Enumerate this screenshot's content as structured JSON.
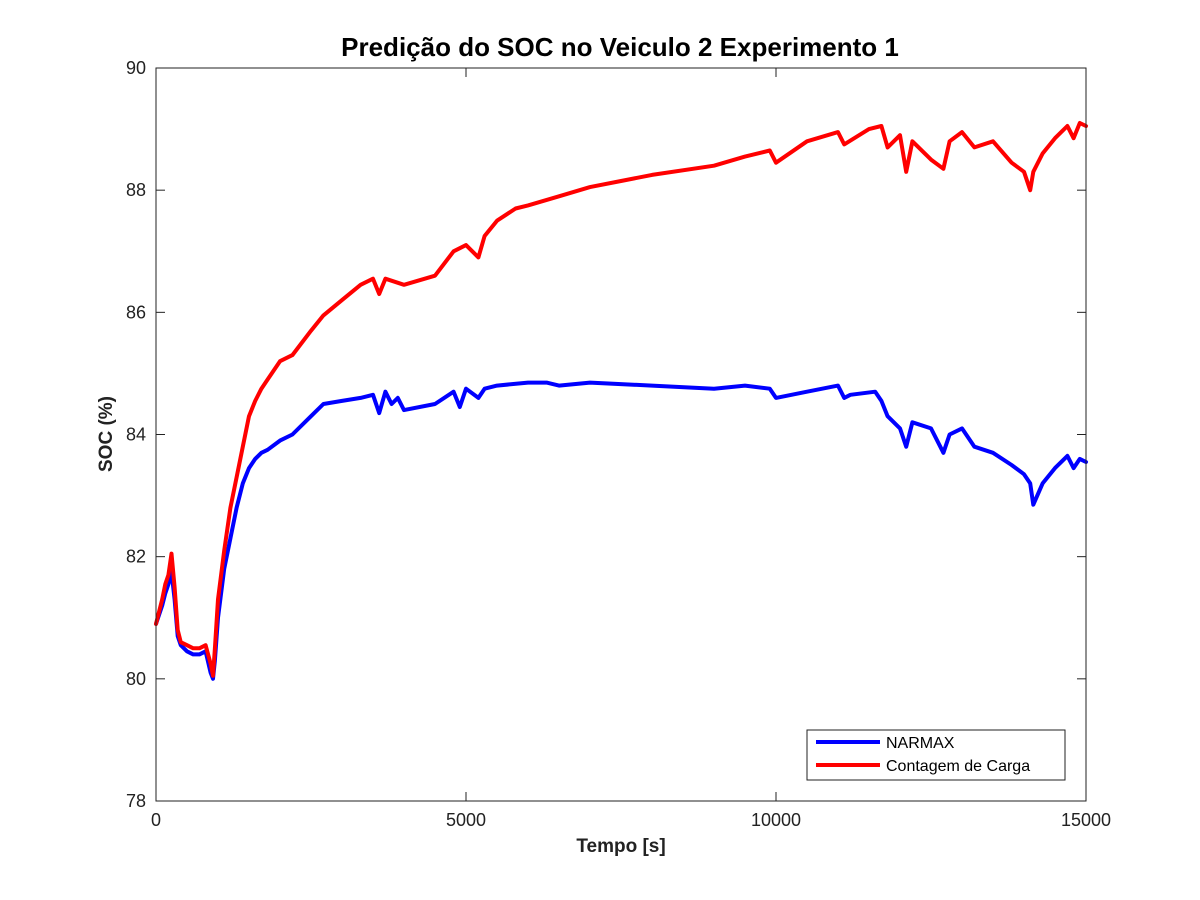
{
  "chart_data": {
    "type": "line",
    "title": "Predição do SOC no  Veiculo 2 Experimento 1",
    "xlabel": "Tempo [s]",
    "ylabel": "SOC (%)",
    "xlim": [
      0,
      15000
    ],
    "ylim": [
      78,
      90
    ],
    "xticks": [
      0,
      5000,
      10000,
      15000
    ],
    "yticks": [
      78,
      80,
      82,
      84,
      86,
      88,
      90
    ],
    "grid": false,
    "legend_position": "bottom-right",
    "series": [
      {
        "name": "NARMAX",
        "color": "#0000ff",
        "x": [
          0,
          100,
          150,
          200,
          250,
          300,
          350,
          400,
          500,
          600,
          700,
          800,
          880,
          920,
          950,
          1000,
          1100,
          1200,
          1300,
          1400,
          1500,
          1600,
          1700,
          1800,
          2000,
          2200,
          2500,
          2700,
          3000,
          3300,
          3500,
          3600,
          3700,
          3800,
          3900,
          4000,
          4500,
          4800,
          4900,
          5000,
          5200,
          5300,
          5500,
          6000,
          6300,
          6500,
          7000,
          8000,
          9000,
          9500,
          9900,
          10000,
          10500,
          11000,
          11100,
          11200,
          11600,
          11700,
          11800,
          12000,
          12100,
          12200,
          12500,
          12700,
          12800,
          13000,
          13200,
          13500,
          13800,
          14000,
          14100,
          14150,
          14300,
          14500,
          14700,
          14800,
          14900,
          15000
        ],
        "y": [
          80.9,
          81.2,
          81.4,
          81.55,
          81.75,
          81.3,
          80.7,
          80.55,
          80.45,
          80.4,
          80.4,
          80.45,
          80.1,
          80.0,
          80.3,
          81.0,
          81.8,
          82.3,
          82.8,
          83.2,
          83.45,
          83.6,
          83.7,
          83.75,
          83.9,
          84.0,
          84.3,
          84.5,
          84.55,
          84.6,
          84.65,
          84.35,
          84.7,
          84.5,
          84.6,
          84.4,
          84.5,
          84.7,
          84.45,
          84.75,
          84.6,
          84.75,
          84.8,
          84.85,
          84.85,
          84.8,
          84.85,
          84.8,
          84.75,
          84.8,
          84.75,
          84.6,
          84.7,
          84.8,
          84.6,
          84.65,
          84.7,
          84.55,
          84.3,
          84.1,
          83.8,
          84.2,
          84.1,
          83.7,
          84.0,
          84.1,
          83.8,
          83.7,
          83.5,
          83.35,
          83.2,
          82.85,
          83.2,
          83.45,
          83.65,
          83.45,
          83.6,
          83.55
        ]
      },
      {
        "name": "Contagem de Carga",
        "color": "#ff0000",
        "x": [
          0,
          100,
          150,
          200,
          250,
          300,
          350,
          400,
          500,
          600,
          700,
          800,
          880,
          920,
          950,
          1000,
          1100,
          1200,
          1300,
          1400,
          1500,
          1600,
          1700,
          1800,
          2000,
          2200,
          2500,
          2700,
          3000,
          3300,
          3500,
          3600,
          3700,
          4000,
          4500,
          4800,
          5000,
          5200,
          5300,
          5500,
          5800,
          6000,
          6500,
          7000,
          7500,
          8000,
          9000,
          9500,
          9900,
          10000,
          10500,
          11000,
          11100,
          11500,
          11700,
          11800,
          12000,
          12100,
          12200,
          12500,
          12700,
          12800,
          13000,
          13200,
          13500,
          13800,
          14000,
          14100,
          14150,
          14300,
          14500,
          14700,
          14800,
          14900,
          15000
        ],
        "y": [
          80.9,
          81.3,
          81.55,
          81.7,
          82.05,
          81.5,
          80.8,
          80.6,
          80.55,
          80.5,
          80.5,
          80.55,
          80.25,
          80.05,
          80.5,
          81.3,
          82.1,
          82.8,
          83.3,
          83.8,
          84.3,
          84.55,
          84.75,
          84.9,
          85.2,
          85.3,
          85.7,
          85.95,
          86.2,
          86.45,
          86.55,
          86.3,
          86.55,
          86.45,
          86.6,
          87.0,
          87.1,
          86.9,
          87.25,
          87.5,
          87.7,
          87.75,
          87.9,
          88.05,
          88.15,
          88.25,
          88.4,
          88.55,
          88.65,
          88.45,
          88.8,
          88.95,
          88.75,
          89.0,
          89.05,
          88.7,
          88.9,
          88.3,
          88.8,
          88.5,
          88.35,
          88.8,
          88.95,
          88.7,
          88.8,
          88.45,
          88.3,
          88.0,
          88.3,
          88.6,
          88.85,
          89.05,
          88.85,
          89.1,
          89.05
        ]
      }
    ]
  }
}
